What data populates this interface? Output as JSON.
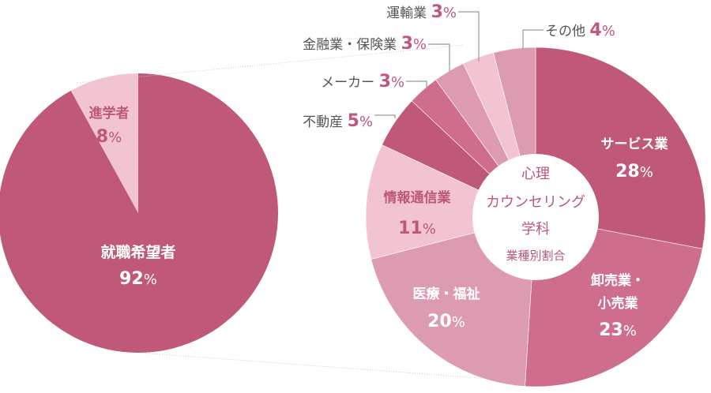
{
  "chart_data": [
    {
      "type": "pie",
      "slices": [
        {
          "label": "就職希望者",
          "value": 92,
          "pct_text": "92%",
          "color": "#c05878",
          "label_color": "#ffffff",
          "value_color": "#ffffff"
        },
        {
          "label": "進学者",
          "value": 8,
          "pct_text": "8%",
          "color": "#f2c3d0",
          "label_color": "#bc5878",
          "value_color": "#bc5878"
        }
      ]
    },
    {
      "type": "pie",
      "title_lines": [
        "心理",
        "カウンセリング",
        "学科"
      ],
      "subtitle": "業種別割合",
      "slices": [
        {
          "label": "サービス業",
          "value": 28,
          "pct_text": "28%",
          "color": "#c05878"
        },
        {
          "label": "卸売業・小売業",
          "label_lines": [
            "卸売業・",
            "小売業"
          ],
          "value": 23,
          "pct_text": "23%",
          "color": "#cf6d8c"
        },
        {
          "label": "医療・福祉",
          "value": 20,
          "pct_text": "20%",
          "color": "#dc9bb1"
        },
        {
          "label": "情報通信業",
          "value": 11,
          "pct_text": "11%",
          "color": "#f2c3d0"
        },
        {
          "label": "不動産",
          "value": 5,
          "pct_text": "5%",
          "color": "#c05878"
        },
        {
          "label": "メーカー",
          "value": 3,
          "pct_text": "3%",
          "color": "#cf6d8c"
        },
        {
          "label": "金融業・保険業",
          "value": 3,
          "pct_text": "3%",
          "color": "#dc9bb1"
        },
        {
          "label": "運輸業",
          "value": 3,
          "pct_text": "3%",
          "color": "#f2c3d0"
        },
        {
          "label": "その他",
          "value": 4,
          "pct_text": "4%",
          "color": "#dc9bb1"
        }
      ]
    }
  ],
  "colors": {
    "accent": "#c05878",
    "callout_text": "#555555",
    "center_text": "#bc5878",
    "leader_line": "#c9c9c9",
    "callout_line": "#999999"
  }
}
